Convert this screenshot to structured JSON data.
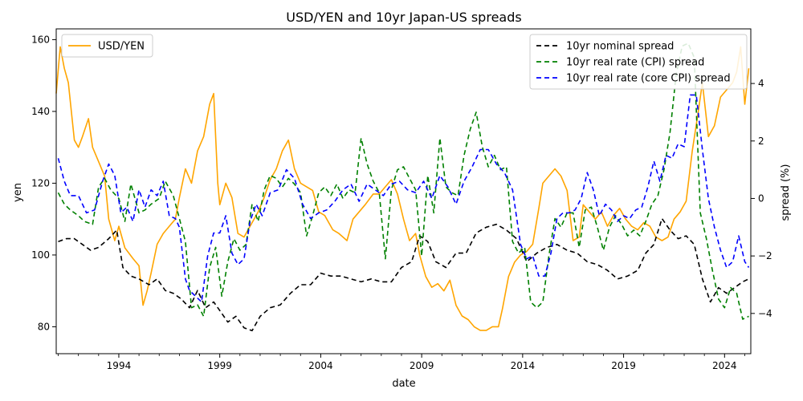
{
  "chart_data": {
    "type": "line",
    "title": "USD/YEN and 10yr Japan-US spreads",
    "xlabel": "date",
    "ylabel_left": "yen",
    "ylabel_right": "spread (%)",
    "xlim": [
      1990.9,
      2025.3
    ],
    "ylim_left": [
      72.5,
      163
    ],
    "ylim_right": [
      -5.4,
      5.9
    ],
    "x_ticks": [
      {
        "value": 1994,
        "label": "1994"
      },
      {
        "value": 1999,
        "label": "1999"
      },
      {
        "value": 2004,
        "label": "2004"
      },
      {
        "value": 2009,
        "label": "2009"
      },
      {
        "value": 2014,
        "label": "2014"
      },
      {
        "value": 2019,
        "label": "2019"
      },
      {
        "value": 2024,
        "label": "2024"
      }
    ],
    "y_left_ticks": [
      {
        "value": 80,
        "label": "80"
      },
      {
        "value": 100,
        "label": "100"
      },
      {
        "value": 120,
        "label": "120"
      },
      {
        "value": 140,
        "label": "140"
      },
      {
        "value": 160,
        "label": "160"
      }
    ],
    "y_right_ticks": [
      {
        "value": -4,
        "label": "−4"
      },
      {
        "value": -2,
        "label": "−2"
      },
      {
        "value": 0,
        "label": "0"
      },
      {
        "value": 2,
        "label": "2"
      },
      {
        "value": 4,
        "label": "4"
      }
    ],
    "legend_left": {
      "position": "upper-left",
      "entries": [
        "USD/YEN"
      ]
    },
    "legend_right": {
      "position": "upper-right",
      "entries": [
        "10yr nominal spread",
        "10yr real rate (CPI) spread",
        "10yr real rate (core CPI) spread"
      ]
    },
    "series": [
      {
        "name": "USD/YEN",
        "axis": "left",
        "color": "#ffa500",
        "dash": "solid",
        "x": [
          1990.9,
          1991.1,
          1991.3,
          1991.5,
          1991.8,
          1992.0,
          1992.2,
          1992.5,
          1992.7,
          1993.0,
          1993.3,
          1993.5,
          1993.8,
          1994.0,
          1994.3,
          1994.7,
          1995.0,
          1995.2,
          1995.4,
          1995.6,
          1995.9,
          1996.2,
          1996.5,
          1996.8,
          1997.0,
          1997.3,
          1997.6,
          1997.9,
          1998.2,
          1998.5,
          1998.7,
          1998.9,
          1999.0,
          1999.3,
          1999.6,
          1999.9,
          2000.2,
          2000.5,
          2000.9,
          2001.2,
          2001.5,
          2001.8,
          2002.1,
          2002.4,
          2002.7,
          2003.0,
          2003.3,
          2003.6,
          2003.9,
          2004.2,
          2004.6,
          2004.9,
          2005.3,
          2005.6,
          2005.9,
          2006.2,
          2006.6,
          2006.9,
          2007.2,
          2007.5,
          2007.8,
          2008.1,
          2008.4,
          2008.7,
          2008.9,
          2009.2,
          2009.5,
          2009.8,
          2010.1,
          2010.4,
          2010.7,
          2011.0,
          2011.3,
          2011.6,
          2011.9,
          2012.2,
          2012.5,
          2012.8,
          2013.0,
          2013.3,
          2013.6,
          2013.9,
          2014.2,
          2014.5,
          2014.8,
          2015.0,
          2015.3,
          2015.6,
          2015.9,
          2016.2,
          2016.5,
          2016.8,
          2017.0,
          2017.3,
          2017.6,
          2017.9,
          2018.2,
          2018.5,
          2018.8,
          2019.1,
          2019.4,
          2019.7,
          2020.0,
          2020.3,
          2020.6,
          2020.9,
          2021.2,
          2021.5,
          2021.8,
          2022.1,
          2022.4,
          2022.7,
          2022.9,
          2023.2,
          2023.5,
          2023.8,
          2024.1,
          2024.4,
          2024.6,
          2024.8,
          2025.0,
          2025.2
        ],
        "y": [
          145,
          158,
          152,
          148,
          132,
          130,
          133,
          138,
          130,
          126,
          122,
          110,
          104,
          108,
          102,
          99,
          97,
          86,
          90,
          95,
          103,
          106,
          108,
          110,
          116,
          124,
          120,
          129,
          133,
          142,
          145,
          120,
          114,
          120,
          116,
          106,
          105,
          108,
          112,
          116,
          121,
          124,
          129,
          132,
          124,
          120,
          119,
          118,
          112,
          111,
          107,
          106,
          104,
          110,
          112,
          114,
          117,
          117,
          119,
          121,
          117,
          110,
          104,
          106,
          100,
          94,
          91,
          92,
          90,
          93,
          86,
          83,
          82,
          80,
          79,
          79,
          80,
          80,
          85,
          94,
          98,
          100,
          101,
          103,
          113,
          120,
          122,
          124,
          122,
          118,
          104,
          105,
          114,
          112,
          110,
          112,
          108,
          111,
          113,
          110,
          108,
          107,
          109,
          108,
          105,
          104,
          105,
          110,
          112,
          115,
          129,
          140,
          148,
          133,
          136,
          144,
          146,
          148,
          151,
          158,
          142,
          152
        ]
      },
      {
        "name": "10yr nominal spread",
        "axis": "right",
        "color": "#000000",
        "dash": "6,4",
        "x": [
          1991.0,
          1991.4,
          1991.8,
          1992.2,
          1992.6,
          1993.0,
          1993.5,
          1993.9,
          1994.2,
          1994.6,
          1995.0,
          1995.5,
          1995.9,
          1996.3,
          1996.7,
          1997.1,
          1997.5,
          1997.9,
          1998.3,
          1998.7,
          1999.0,
          1999.4,
          1999.8,
          2000.2,
          2000.6,
          2001.0,
          2001.5,
          2002.0,
          2002.5,
          2003.0,
          2003.5,
          2004.0,
          2004.5,
          2005.0,
          2005.5,
          2006.0,
          2006.5,
          2007.0,
          2007.5,
          2008.0,
          2008.5,
          2008.9,
          2009.3,
          2009.7,
          2010.2,
          2010.7,
          2011.2,
          2011.7,
          2012.2,
          2012.7,
          2013.2,
          2013.7,
          2014.2,
          2014.7,
          2015.2,
          2015.7,
          2016.2,
          2016.7,
          2017.2,
          2017.7,
          2018.2,
          2018.7,
          2019.2,
          2019.7,
          2020.1,
          2020.5,
          2020.9,
          2021.3,
          2021.7,
          2022.1,
          2022.5,
          2022.9,
          2023.3,
          2023.7,
          2024.1,
          2024.5,
          2024.9,
          2025.2
        ],
        "y": [
          -1.5,
          -1.4,
          -1.4,
          -1.6,
          -1.8,
          -1.7,
          -1.4,
          -1.1,
          -2.4,
          -2.7,
          -2.8,
          -3.0,
          -2.8,
          -3.2,
          -3.3,
          -3.5,
          -3.8,
          -3.2,
          -3.8,
          -3.6,
          -3.9,
          -4.3,
          -4.1,
          -4.5,
          -4.6,
          -4.1,
          -3.8,
          -3.7,
          -3.3,
          -3.0,
          -3.0,
          -2.6,
          -2.7,
          -2.7,
          -2.8,
          -2.9,
          -2.8,
          -2.9,
          -2.9,
          -2.4,
          -2.2,
          -1.3,
          -1.5,
          -2.2,
          -2.4,
          -1.9,
          -1.9,
          -1.2,
          -1.0,
          -0.9,
          -1.1,
          -1.4,
          -2.2,
          -1.9,
          -1.7,
          -1.6,
          -1.8,
          -1.9,
          -2.2,
          -2.3,
          -2.5,
          -2.8,
          -2.7,
          -2.5,
          -1.9,
          -1.6,
          -0.7,
          -1.1,
          -1.4,
          -1.3,
          -1.6,
          -2.8,
          -3.6,
          -3.1,
          -3.3,
          -3.1,
          -2.9,
          -2.8
        ]
      },
      {
        "name": "10yr real rate (CPI) spread",
        "axis": "right",
        "color": "#008000",
        "dash": "6,4",
        "x": [
          1991.0,
          1991.3,
          1991.6,
          1992.0,
          1992.3,
          1992.7,
          1993.0,
          1993.3,
          1993.6,
          1994.0,
          1994.3,
          1994.6,
          1995.0,
          1995.3,
          1995.6,
          1996.0,
          1996.3,
          1996.7,
          1997.0,
          1997.3,
          1997.6,
          1997.9,
          1998.2,
          1998.5,
          1998.8,
          1999.1,
          1999.4,
          1999.7,
          2000.0,
          2000.3,
          2000.6,
          2000.9,
          2001.2,
          2001.5,
          2001.8,
          2002.1,
          2002.4,
          2002.7,
          2003.0,
          2003.3,
          2003.6,
          2003.9,
          2004.2,
          2004.5,
          2004.8,
          2005.1,
          2005.4,
          2005.7,
          2006.0,
          2006.3,
          2006.6,
          2006.9,
          2007.2,
          2007.5,
          2007.8,
          2008.1,
          2008.4,
          2008.7,
          2009.0,
          2009.3,
          2009.6,
          2009.9,
          2010.2,
          2010.5,
          2010.8,
          2011.1,
          2011.4,
          2011.7,
          2012.0,
          2012.3,
          2012.6,
          2012.9,
          2013.2,
          2013.5,
          2013.8,
          2014.1,
          2014.4,
          2014.7,
          2015.0,
          2015.3,
          2015.6,
          2015.9,
          2016.2,
          2016.5,
          2016.8,
          2017.1,
          2017.4,
          2017.7,
          2018.0,
          2018.3,
          2018.6,
          2018.9,
          2019.2,
          2019.5,
          2019.8,
          2020.1,
          2020.4,
          2020.7,
          2021.0,
          2021.3,
          2021.6,
          2021.9,
          2022.2,
          2022.5,
          2022.8,
          2023.1,
          2023.4,
          2023.7,
          2024.0,
          2024.3,
          2024.6,
          2024.9,
          2025.2
        ],
        "y": [
          0.2,
          -0.2,
          -0.4,
          -0.6,
          -0.8,
          -0.9,
          0.4,
          0.7,
          0.3,
          0.0,
          -0.8,
          0.5,
          -0.5,
          -0.4,
          -0.2,
          0.0,
          0.6,
          0.1,
          -0.7,
          -1.5,
          -3.8,
          -3.7,
          -4.1,
          -2.4,
          -1.7,
          -3.4,
          -2.2,
          -1.4,
          -1.8,
          -1.6,
          -0.2,
          -0.8,
          0.3,
          0.8,
          0.7,
          0.4,
          0.7,
          0.5,
          0.2,
          -1.3,
          -0.6,
          0.2,
          0.4,
          0.1,
          0.5,
          0.0,
          0.3,
          0.2,
          2.1,
          1.2,
          0.6,
          0.2,
          -2.1,
          0.3,
          1.0,
          1.1,
          0.7,
          0.3,
          -2.0,
          0.8,
          -0.5,
          2.1,
          0.4,
          0.2,
          0.1,
          1.5,
          2.4,
          3.0,
          1.8,
          1.1,
          1.5,
          1.0,
          1.1,
          -1.5,
          -1.9,
          -1.7,
          -3.6,
          -3.8,
          -3.6,
          -2.0,
          -0.7,
          -1.0,
          -0.5,
          -0.5,
          -1.7,
          -0.4,
          -0.3,
          -1.0,
          -1.8,
          -1.0,
          -0.6,
          -0.9,
          -1.3,
          -1.1,
          -1.3,
          -0.8,
          -0.2,
          0.1,
          1.0,
          2.3,
          4.3,
          5.3,
          5.4,
          4.9,
          -0.5,
          -1.4,
          -2.5,
          -3.5,
          -3.8,
          -3.1,
          -3.3,
          -4.2,
          -4.1
        ]
      },
      {
        "name": "10yr real rate (core CPI) spread",
        "axis": "right",
        "color": "#0000ff",
        "dash": "6,4",
        "x": [
          1991.0,
          1991.3,
          1991.6,
          1992.0,
          1992.4,
          1992.8,
          1993.2,
          1993.5,
          1993.8,
          1994.1,
          1994.4,
          1994.7,
          1995.0,
          1995.3,
          1995.6,
          1995.9,
          1996.2,
          1996.5,
          1996.8,
          1997.0,
          1997.3,
          1997.5,
          1997.8,
          1998.1,
          1998.4,
          1998.7,
          1999.0,
          1999.3,
          1999.6,
          1999.9,
          2000.2,
          2000.5,
          2000.8,
          2001.1,
          2001.5,
          2001.9,
          2002.3,
          2002.7,
          2003.1,
          2003.5,
          2003.9,
          2004.3,
          2004.7,
          2005.1,
          2005.5,
          2005.9,
          2006.3,
          2006.7,
          2007.1,
          2007.5,
          2007.9,
          2008.3,
          2008.7,
          2009.1,
          2009.5,
          2009.9,
          2010.3,
          2010.7,
          2011.1,
          2011.5,
          2011.9,
          2012.3,
          2012.7,
          2013.1,
          2013.5,
          2013.9,
          2014.2,
          2014.5,
          2014.8,
          2015.1,
          2015.4,
          2015.7,
          2016.0,
          2016.3,
          2016.6,
          2016.9,
          2017.2,
          2017.5,
          2017.8,
          2018.1,
          2018.4,
          2018.7,
          2019.0,
          2019.3,
          2019.6,
          2019.9,
          2020.2,
          2020.5,
          2020.8,
          2021.1,
          2021.4,
          2021.7,
          2022.0,
          2022.3,
          2022.6,
          2022.9,
          2023.2,
          2023.5,
          2023.8,
          2024.1,
          2024.4,
          2024.7,
          2025.0,
          2025.2
        ],
        "y": [
          1.4,
          0.6,
          0.1,
          0.1,
          -0.5,
          -0.4,
          0.6,
          1.2,
          0.8,
          -0.5,
          -0.3,
          -0.8,
          0.3,
          -0.3,
          0.3,
          0.1,
          0.6,
          -0.6,
          -0.7,
          -1.0,
          -2.8,
          -3.2,
          -3.4,
          -3.6,
          -2.0,
          -1.2,
          -1.2,
          -0.6,
          -1.9,
          -2.3,
          -2.1,
          -0.8,
          -0.2,
          -0.6,
          0.2,
          0.3,
          1.0,
          0.7,
          -0.2,
          -0.7,
          -0.5,
          -0.4,
          -0.1,
          0.3,
          0.5,
          -0.1,
          0.5,
          0.3,
          0.1,
          0.5,
          0.6,
          0.3,
          0.2,
          0.6,
          0.0,
          0.8,
          0.4,
          -0.2,
          0.6,
          1.1,
          1.7,
          1.7,
          1.2,
          0.9,
          0.3,
          -1.6,
          -2.1,
          -2.0,
          -2.7,
          -2.7,
          -1.9,
          -0.7,
          -0.5,
          -0.5,
          -0.4,
          0.0,
          0.9,
          0.3,
          -0.6,
          -0.2,
          -0.4,
          -0.8,
          -0.6,
          -0.7,
          -0.4,
          -0.3,
          0.4,
          1.3,
          0.6,
          1.5,
          1.4,
          1.9,
          1.8,
          3.6,
          3.6,
          1.7,
          0.0,
          -1.0,
          -1.8,
          -2.4,
          -2.2,
          -1.3,
          -2.2,
          -2.4
        ]
      }
    ]
  }
}
